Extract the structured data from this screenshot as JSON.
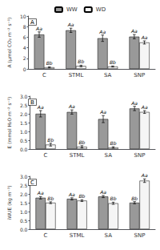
{
  "chart_data": [
    {
      "type": "bar",
      "annotation": "A",
      "ylabel": "A (μmol CO₂ m⁻² s⁻¹)",
      "categories": [
        "C",
        "STML",
        "SA",
        "SNP"
      ],
      "series": [
        {
          "name": "WW",
          "color": "#999999",
          "values": [
            6.5,
            7.3,
            5.8,
            6.1
          ],
          "errors": [
            0.5,
            0.4,
            0.6,
            0.4
          ],
          "letters": [
            "Aa",
            "Aa",
            "Aa",
            "Aa"
          ]
        },
        {
          "name": "WD",
          "color": "#f5f5f5",
          "values": [
            0.3,
            0.55,
            0.45,
            5.0
          ],
          "errors": [
            0.1,
            0.15,
            0.1,
            0.3
          ],
          "letters": [
            "Bb",
            "Bb",
            "Bb",
            "Aa"
          ]
        }
      ],
      "ylim": [
        0,
        10
      ],
      "yticks": [
        0,
        2,
        4,
        6,
        8,
        10
      ],
      "grid": false,
      "legend": "upper center"
    },
    {
      "type": "bar",
      "annotation": "B",
      "ylabel": "E (mmol H₂O m⁻² s⁻¹)",
      "categories": [
        "C",
        "STML",
        "SA",
        "SNP"
      ],
      "series": [
        {
          "name": "WW",
          "color": "#999999",
          "values": [
            2.0,
            2.1,
            1.7,
            2.3
          ],
          "errors": [
            0.18,
            0.12,
            0.2,
            0.12
          ],
          "letters": [
            "Aa",
            "Aa",
            "Aa",
            "Aa"
          ]
        },
        {
          "name": "WD",
          "color": "#f5f5f5",
          "values": [
            0.25,
            0.13,
            0.09,
            2.1
          ],
          "errors": [
            0.08,
            0.06,
            0.04,
            0.08
          ],
          "letters": [
            "Bb",
            "Bb",
            "Bb",
            "Aa"
          ]
        }
      ],
      "ylim": [
        0,
        3.0
      ],
      "yticks": [
        {
          "value": 0,
          "label": "0.0"
        },
        0.5,
        {
          "value": 1,
          "label": "1.0"
        },
        1.5,
        {
          "value": 2,
          "label": "2.0"
        },
        2.5,
        {
          "value": 3,
          "label": "3.0"
        }
      ],
      "grid": false
    },
    {
      "type": "bar",
      "annotation": "C",
      "ylabel": "iWUE (kg m⁻³)",
      "categories": [
        "C",
        "STML",
        "SA",
        "SNP"
      ],
      "series": [
        {
          "name": "WW",
          "color": "#999999",
          "values": [
            1.78,
            1.72,
            1.85,
            1.5
          ],
          "errors": [
            0.07,
            0.06,
            0.06,
            0.06
          ],
          "letters": [
            "Aa",
            "Aa",
            "Aa",
            "Bb"
          ]
        },
        {
          "name": "WD",
          "color": "#f5f5f5",
          "values": [
            1.5,
            1.62,
            1.47,
            2.75
          ],
          "errors": [
            0.05,
            0.05,
            0.06,
            0.1
          ],
          "letters": [
            "Bb",
            "Bb",
            "Bb",
            "Aa"
          ]
        }
      ],
      "ylim": [
        0,
        3.0
      ],
      "yticks": [
        {
          "value": 0,
          "label": "0.0"
        },
        0.5,
        {
          "value": 1,
          "label": "1.0"
        },
        1.5,
        {
          "value": 2,
          "label": "2.0"
        },
        2.5,
        {
          "value": 3,
          "label": "3.0"
        }
      ],
      "grid": false
    }
  ]
}
